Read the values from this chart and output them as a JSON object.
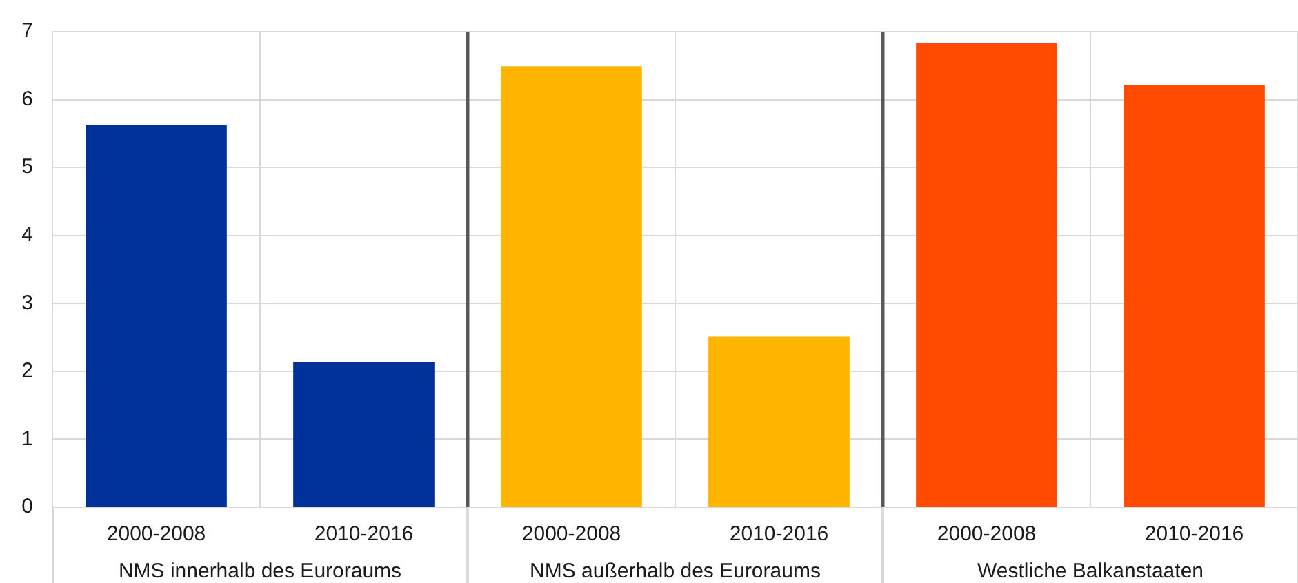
{
  "chart_data": {
    "type": "bar",
    "categories": [
      "2000-2008",
      "2010-2016",
      "2000-2008",
      "2010-2016",
      "2000-2008",
      "2010-2016"
    ],
    "series": [
      {
        "name": "NMS innerhalb des Euroraums",
        "color": "#003299",
        "values": [
          5.62,
          2.14,
          null,
          null,
          null,
          null
        ]
      },
      {
        "name": "NMS außerhalb des Euroraums",
        "color": "#ffb400",
        "values": [
          null,
          null,
          6.49,
          2.51,
          null,
          null
        ]
      },
      {
        "name": "Westliche Balkanstaaten",
        "color": "#ff4b00",
        "values": [
          null,
          null,
          null,
          null,
          6.83,
          6.21
        ]
      }
    ],
    "ylim": [
      0,
      7
    ],
    "yticks": [
      0,
      1,
      2,
      3,
      4,
      5,
      6,
      7
    ],
    "grid": true,
    "legend": false
  }
}
